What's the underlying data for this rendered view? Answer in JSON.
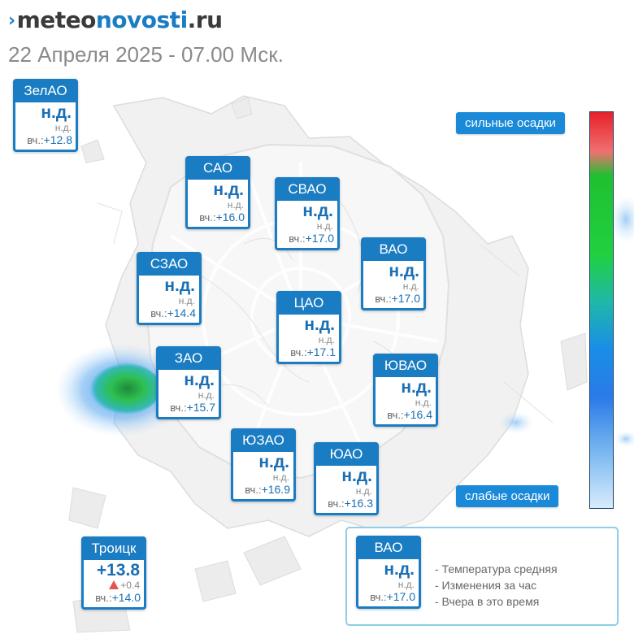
{
  "header": {
    "logo_part1": "meteo",
    "logo_part2": "novosti",
    "logo_part3": ".ru",
    "datetime": "22 Апреля 2025 - 07.00 Мск."
  },
  "yesterday_label": "вч.:",
  "districts": [
    {
      "name": "ЗелАО",
      "value": "н.д.",
      "change": "н.д.",
      "yesterday": "+12.8"
    },
    {
      "name": "САО",
      "value": "н.д.",
      "change": "н.д.",
      "yesterday": "+16.0"
    },
    {
      "name": "СВАО",
      "value": "н.д.",
      "change": "н.д.",
      "yesterday": "+17.0"
    },
    {
      "name": "ВАО",
      "value": "н.д.",
      "change": "н.д.",
      "yesterday": "+17.0"
    },
    {
      "name": "СЗАО",
      "value": "н.д.",
      "change": "н.д.",
      "yesterday": "+14.4"
    },
    {
      "name": "ЦАО",
      "value": "н.д.",
      "change": "н.д.",
      "yesterday": "+17.1"
    },
    {
      "name": "ЗАО",
      "value": "н.д.",
      "change": "н.д.",
      "yesterday": "+15.7"
    },
    {
      "name": "ЮВАО",
      "value": "н.д.",
      "change": "н.д.",
      "yesterday": "+16.4"
    },
    {
      "name": "ЮЗАО",
      "value": "н.д.",
      "change": "н.д.",
      "yesterday": "+16.9"
    },
    {
      "name": "ЮАО",
      "value": "н.д.",
      "change": "н.д.",
      "yesterday": "+16.3"
    },
    {
      "name": "Троицк",
      "value": "+13.8",
      "change": "+0.4",
      "yesterday": "+14.0"
    }
  ],
  "precip_scale": {
    "top_label": "сильные осадки",
    "bottom_label": "слабые осадки",
    "top_color": "#e8202a",
    "mid_color": "#20d040",
    "low_color": "#1a8de8"
  },
  "legend": {
    "sample_name": "ВАО",
    "sample_value": "н.д.",
    "sample_change": "н.д.",
    "sample_yesterday": "+17.0",
    "line1": "- Температура средняя",
    "line2": "- Изменения за час",
    "line3": "- Вчера в это время"
  },
  "colors": {
    "brand_blue": "#1a7cc2",
    "trend_up": "#e55353"
  },
  "icons": {
    "logo": "chevron-right-icon",
    "trend": "triangle-up-icon"
  }
}
